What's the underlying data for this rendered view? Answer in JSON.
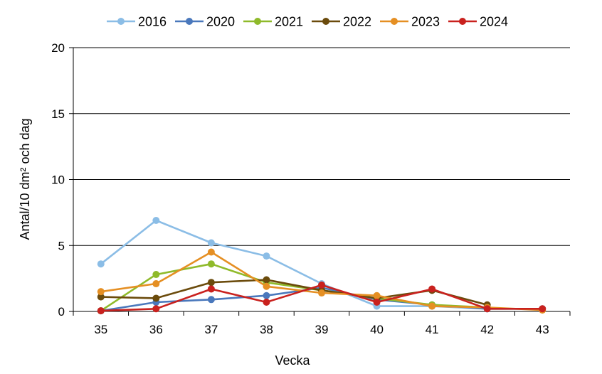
{
  "chart_data": {
    "type": "line",
    "title": "",
    "xlabel": "Vecka",
    "ylabel": "Antal/10 dm² och dag",
    "categories": [
      "35",
      "36",
      "37",
      "38",
      "39",
      "40",
      "41",
      "42",
      "43"
    ],
    "ylim": [
      0,
      20
    ],
    "yticks": [
      "0",
      "5",
      "10",
      "15",
      "20"
    ],
    "grid": true,
    "legend_position": "top",
    "series": [
      {
        "name": "2016",
        "color": "#8bbde6",
        "values": [
          3.6,
          6.9,
          5.2,
          4.2,
          2.1,
          0.4,
          0.4,
          0.2,
          null
        ]
      },
      {
        "name": "2020",
        "color": "#4a78bc",
        "values": [
          0.05,
          0.7,
          0.9,
          1.2,
          1.8,
          0.9,
          0.5,
          0.2,
          0.2
        ]
      },
      {
        "name": "2021",
        "color": "#8fba2a",
        "values": [
          0.05,
          2.8,
          3.6,
          2.2,
          1.6,
          1.0,
          0.5,
          0.3,
          null
        ]
      },
      {
        "name": "2022",
        "color": "#6b4b0c",
        "values": [
          1.1,
          1.0,
          2.2,
          2.4,
          1.6,
          1.0,
          1.6,
          0.5,
          null
        ]
      },
      {
        "name": "2023",
        "color": "#e58f23",
        "values": [
          1.5,
          2.1,
          4.5,
          1.9,
          1.4,
          1.2,
          0.4,
          0.3,
          0.1
        ]
      },
      {
        "name": "2024",
        "color": "#c9211e",
        "values": [
          0.05,
          0.2,
          1.7,
          0.7,
          2.0,
          0.7,
          1.7,
          0.2,
          0.2
        ]
      }
    ]
  }
}
